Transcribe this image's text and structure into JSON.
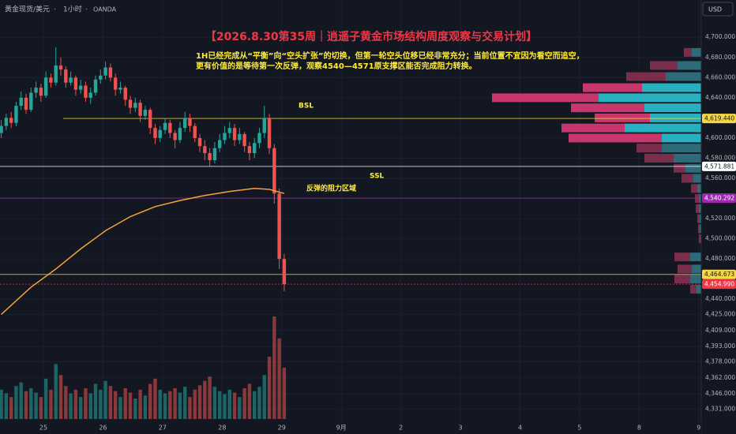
{
  "chart_data": {
    "type": "candlestick",
    "symbol": "黄金现货/美元",
    "interval": "1小时",
    "source": "OANDA",
    "currency": "USD",
    "title": "【2026.8.30第35周｜逍遥子黄金市场结构周度观察与交易计划】",
    "note": [
      "1H已经完成从“平衡”向“空头扩张”的切换，但第一轮空头位移已经非常充分；当前位置不宜因为看空而追空，",
      "更有价值的是等待第一次反弹，观察4540—4571原支撑区能否完成阻力转换。"
    ],
    "annotations": [
      "BSL",
      "SSL",
      "反弹的阻力区域"
    ],
    "up_color": "#26a69a",
    "down_color": "#ef5350",
    "x": [
      -17,
      -15,
      -13,
      -11,
      -9,
      -7,
      -5,
      -3,
      -1,
      1,
      3,
      5,
      7,
      9,
      11,
      13,
      15,
      17,
      19,
      21,
      23,
      25,
      27,
      29,
      31,
      33,
      35,
      37,
      39,
      41,
      43,
      45,
      47,
      49,
      51,
      53,
      55,
      57,
      59,
      61,
      63,
      65,
      67,
      69,
      71,
      73,
      75,
      77,
      79,
      81,
      83,
      85,
      87,
      89,
      91,
      93,
      95,
      97
    ],
    "open": [
      4605,
      4612,
      4620,
      4615,
      4632,
      4640,
      4628,
      4645,
      4650,
      4642,
      4660,
      4655,
      4672,
      4668,
      4655,
      4660,
      4648,
      4652,
      4640,
      4645,
      4658,
      4662,
      4670,
      4660,
      4648,
      4650,
      4638,
      4630,
      4635,
      4622,
      4628,
      4610,
      4600,
      4608,
      4615,
      4605,
      4598,
      4610,
      4620,
      4612,
      4600,
      4592,
      4585,
      4578,
      4590,
      4598,
      4605,
      4610,
      4598,
      4604,
      4592,
      4585,
      4595,
      4605,
      4620,
      4590,
      4545,
      4480
    ],
    "high": [
      4618,
      4624,
      4626,
      4636,
      4646,
      4644,
      4650,
      4656,
      4654,
      4666,
      4664,
      4690,
      4680,
      4671,
      4666,
      4662,
      4658,
      4656,
      4650,
      4662,
      4668,
      4676,
      4674,
      4664,
      4656,
      4652,
      4642,
      4640,
      4638,
      4632,
      4630,
      4614,
      4612,
      4620,
      4618,
      4608,
      4616,
      4626,
      4624,
      4615,
      4604,
      4598,
      4590,
      4596,
      4604,
      4612,
      4616,
      4614,
      4610,
      4606,
      4596,
      4600,
      4610,
      4632,
      4624,
      4594,
      4550,
      4485
    ],
    "low": [
      4600,
      4608,
      4610,
      4612,
      4628,
      4624,
      4626,
      4640,
      4636,
      4640,
      4650,
      4652,
      4662,
      4650,
      4652,
      4642,
      4644,
      4636,
      4634,
      4642,
      4654,
      4658,
      4656,
      4642,
      4644,
      4632,
      4624,
      4626,
      4616,
      4618,
      4604,
      4594,
      4596,
      4604,
      4600,
      4590,
      4595,
      4606,
      4606,
      4596,
      4586,
      4578,
      4572,
      4575,
      4586,
      4594,
      4600,
      4592,
      4594,
      4586,
      4578,
      4580,
      4590,
      4600,
      4584,
      4535,
      4470,
      4448
    ],
    "close": [
      4612,
      4620,
      4615,
      4632,
      4640,
      4628,
      4645,
      4650,
      4642,
      4660,
      4655,
      4672,
      4668,
      4655,
      4660,
      4648,
      4652,
      4640,
      4645,
      4658,
      4662,
      4670,
      4660,
      4648,
      4650,
      4638,
      4630,
      4635,
      4622,
      4628,
      4610,
      4600,
      4608,
      4615,
      4605,
      4598,
      4610,
      4620,
      4612,
      4600,
      4592,
      4585,
      4578,
      4590,
      4598,
      4605,
      4610,
      4598,
      4604,
      4592,
      4585,
      4595,
      4605,
      4620,
      4590,
      4545,
      4480,
      4455
    ],
    "volume": [
      40,
      35,
      30,
      45,
      50,
      38,
      42,
      36,
      30,
      55,
      40,
      75,
      60,
      45,
      35,
      40,
      30,
      42,
      35,
      48,
      40,
      52,
      45,
      38,
      30,
      42,
      36,
      28,
      40,
      32,
      48,
      55,
      40,
      35,
      38,
      42,
      36,
      44,
      30,
      40,
      46,
      52,
      58,
      44,
      38,
      34,
      40,
      36,
      30,
      42,
      48,
      38,
      44,
      60,
      85,
      140,
      110,
      70
    ],
    "xlim": [
      -17.5,
      265
    ],
    "xticks": [
      {
        "value": 0,
        "label": "25"
      },
      {
        "value": 24,
        "label": "26"
      },
      {
        "value": 48,
        "label": "27"
      },
      {
        "value": 72,
        "label": "28"
      },
      {
        "value": 96,
        "label": "29"
      },
      {
        "value": 120,
        "label": "9月"
      },
      {
        "value": 144,
        "label": "2"
      },
      {
        "value": 168,
        "label": "3"
      },
      {
        "value": 192,
        "label": "4"
      },
      {
        "value": 216,
        "label": "5"
      },
      {
        "value": 240,
        "label": "8"
      },
      {
        "value": 264,
        "label": "9"
      }
    ],
    "ylim": [
      4318,
      4737
    ],
    "yticks": [
      {
        "value": 4700,
        "label": "4,700.000"
      },
      {
        "value": 4680,
        "label": "4,680.000"
      },
      {
        "value": 4660,
        "label": "4,660.000"
      },
      {
        "value": 4640,
        "label": "4,640.000"
      },
      {
        "value": 4600,
        "label": "4,600.000"
      },
      {
        "value": 4580,
        "label": "4,580.000"
      },
      {
        "value": 4560,
        "label": "4,560.000"
      },
      {
        "value": 4520,
        "label": "4,520.000"
      },
      {
        "value": 4500,
        "label": "4,500.000"
      },
      {
        "value": 4480,
        "label": "4,480.000"
      },
      {
        "value": 4440,
        "label": "4,440.000"
      },
      {
        "value": 4425,
        "label": "4,425.000"
      },
      {
        "value": 4409,
        "label": "4,409.000"
      },
      {
        "value": 4393,
        "label": "4,393.000"
      },
      {
        "value": 4378,
        "label": "4,378.000"
      },
      {
        "value": 4362,
        "label": "4,362.000"
      },
      {
        "value": 4346,
        "label": "4,346.000"
      },
      {
        "value": 4331,
        "label": "4,331.000"
      }
    ],
    "ma": {
      "color": "#f7a23b",
      "x": [
        -17,
        -5,
        5,
        15,
        25,
        35,
        45,
        55,
        65,
        75,
        85,
        91,
        97
      ],
      "values": [
        4425,
        4452,
        4470,
        4490,
        4508,
        4522,
        4532,
        4538,
        4543,
        4547,
        4550,
        4549,
        4545
      ]
    },
    "levels": [
      {
        "value": 4619.44,
        "label": "4,619.440",
        "color": "#f5d742"
      },
      {
        "value": 4571.881,
        "label": "4,571.881",
        "color": "#ffffff"
      },
      {
        "value": 4540.292,
        "label": "4,540.292",
        "color": "#9c27b0"
      },
      {
        "value": 4464.673,
        "label": "4,464.673",
        "color": "#f5d742"
      },
      {
        "value": 4454.99,
        "label": "4,454.990",
        "color": "#f23645"
      }
    ],
    "volume_profile": {
      "up_color": "#29b0c0",
      "down_color": "#c8366e",
      "up_color_dim": "#2e6b78",
      "down_color_dim": "#7b2d4c",
      "value_area": [
        4595,
        4655
      ],
      "rows": [
        {
          "price": 4685,
          "up": 12,
          "down": 10
        },
        {
          "price": 4672,
          "up": 30,
          "down": 35
        },
        {
          "price": 4661,
          "up": 45,
          "down": 50
        },
        {
          "price": 4650,
          "up": 75,
          "down": 75
        },
        {
          "price": 4640,
          "up": 130,
          "down": 135
        },
        {
          "price": 4630,
          "up": 72,
          "down": 93
        },
        {
          "price": 4620,
          "up": 65,
          "down": 70
        },
        {
          "price": 4610,
          "up": 97,
          "down": 80
        },
        {
          "price": 4600,
          "up": 50,
          "down": 118
        },
        {
          "price": 4590,
          "up": 50,
          "down": 32
        },
        {
          "price": 4580,
          "up": 35,
          "down": 37
        },
        {
          "price": 4570,
          "up": 20,
          "down": 15
        },
        {
          "price": 4560,
          "up": 10,
          "down": 15
        },
        {
          "price": 4550,
          "up": 5,
          "down": 8
        },
        {
          "price": 4540,
          "up": 3,
          "down": 5
        },
        {
          "price": 4530,
          "up": 3,
          "down": 4
        },
        {
          "price": 4520,
          "up": 2,
          "down": 3
        },
        {
          "price": 4510,
          "up": 2,
          "down": 2
        },
        {
          "price": 4500,
          "up": 1,
          "down": 2
        },
        {
          "price": 4482,
          "up": 14,
          "down": 20
        },
        {
          "price": 4470,
          "up": 12,
          "down": 18
        },
        {
          "price": 4460,
          "up": 14,
          "down": 20
        },
        {
          "price": 4450,
          "up": 6,
          "down": 8
        }
      ]
    }
  }
}
